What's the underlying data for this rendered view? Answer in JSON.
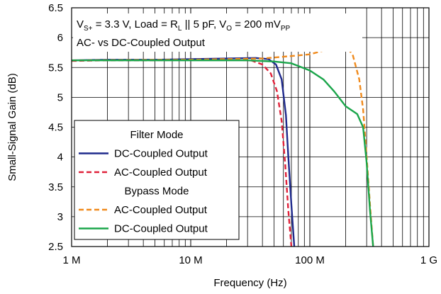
{
  "chart_data": {
    "type": "line",
    "xscale": "log",
    "xlim": [
      1000000,
      1000000000
    ],
    "ylim": [
      2.5,
      6.5
    ],
    "xlabel": "Frequency (Hz)",
    "ylabel": "Small-Signal Gain (dB)",
    "xticks": [
      {
        "value": 1000000,
        "label": "1 M"
      },
      {
        "value": 10000000,
        "label": "10 M"
      },
      {
        "value": 100000000,
        "label": "100 M"
      },
      {
        "value": 1000000000,
        "label": "1 G"
      }
    ],
    "yticks": [
      {
        "value": 2.5,
        "label": "2.5"
      },
      {
        "value": 3,
        "label": "3"
      },
      {
        "value": 3.5,
        "label": "3.5"
      },
      {
        "value": 4,
        "label": "4"
      },
      {
        "value": 4.5,
        "label": "4.5"
      },
      {
        "value": 5,
        "label": "5"
      },
      {
        "value": 5.5,
        "label": "5.5"
      },
      {
        "value": 6,
        "label": "6"
      },
      {
        "value": 6.5,
        "label": "6.5"
      }
    ],
    "grid": true,
    "annotation": {
      "line1": {
        "a": "V",
        "a_sub": "S+",
        "b": " = 3.3 V, Load = R",
        "b_sub": "L",
        "c": " || 5 pF, V",
        "c_sub": "O",
        "d": " = 200 mV",
        "d_sub": "PP"
      },
      "line2": "AC- vs DC-Coupled Output"
    },
    "legend": {
      "placement": "bottom-left",
      "groups": [
        {
          "title": "Filter Mode",
          "entries": [
            {
              "label": "DC-Coupled Output",
              "series": 0
            },
            {
              "label": "AC-Coupled Output",
              "series": 1
            }
          ]
        },
        {
          "title": "Bypass Mode",
          "entries": [
            {
              "label": "AC-Coupled Output",
              "series": 2
            },
            {
              "label": "DC-Coupled Output",
              "series": 3
            }
          ]
        }
      ]
    },
    "series": [
      {
        "name": "Filter Mode DC-Coupled Output",
        "color": "#1f2a8c",
        "dash": "solid",
        "x": [
          1000000,
          2000000,
          5000000,
          10000000,
          20000000,
          35000000,
          45000000,
          52000000,
          58000000,
          63000000,
          66000000,
          70000000,
          74000000
        ],
        "y": [
          5.62,
          5.63,
          5.63,
          5.64,
          5.65,
          5.66,
          5.64,
          5.55,
          5.3,
          4.7,
          4.0,
          3.2,
          2.5
        ]
      },
      {
        "name": "Filter Mode AC-Coupled Output",
        "color": "#e0223a",
        "dash": "dash",
        "x": [
          1000000,
          2000000,
          5000000,
          10000000,
          20000000,
          32000000,
          40000000,
          47000000,
          53000000,
          58000000,
          62000000,
          66000000,
          70000000
        ],
        "y": [
          5.61,
          5.62,
          5.62,
          5.63,
          5.63,
          5.62,
          5.55,
          5.4,
          5.1,
          4.6,
          3.9,
          3.1,
          2.5
        ]
      },
      {
        "name": "Bypass Mode AC-Coupled Output",
        "color": "#f08a1c",
        "dash": "dash",
        "x": [
          1000000,
          10000000,
          40000000,
          60000000,
          100000000,
          140000000,
          180000000,
          200000000,
          230000000,
          260000000,
          280000000,
          300000000,
          320000000,
          340000000
        ],
        "y": [
          5.62,
          5.63,
          5.65,
          5.68,
          5.72,
          5.8,
          5.9,
          5.88,
          5.7,
          5.3,
          4.8,
          4.0,
          3.2,
          2.5
        ]
      },
      {
        "name": "Bypass Mode DC-Coupled Output",
        "color": "#1aa54a",
        "dash": "solid",
        "x": [
          1000000,
          10000000,
          30000000,
          50000000,
          70000000,
          100000000,
          130000000,
          160000000,
          200000000,
          250000000,
          280000000,
          300000000,
          320000000,
          340000000
        ],
        "y": [
          5.62,
          5.62,
          5.62,
          5.6,
          5.57,
          5.45,
          5.3,
          5.1,
          4.85,
          4.72,
          4.5,
          3.9,
          3.1,
          2.5
        ]
      }
    ]
  }
}
